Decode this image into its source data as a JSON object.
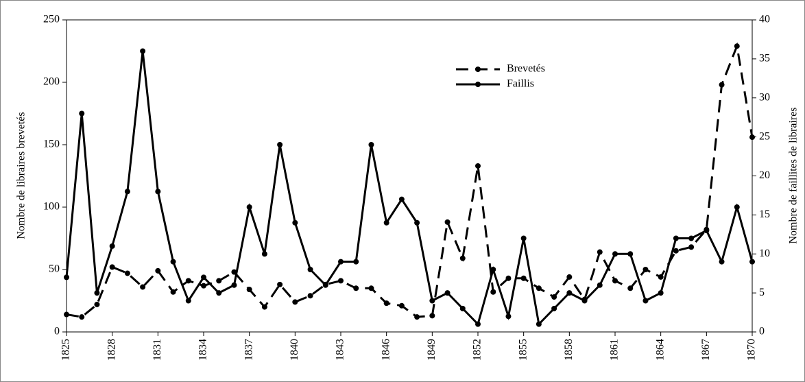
{
  "chart_data": {
    "type": "line",
    "ylabel": "Nombre de libraires brevetés",
    "y2label": "Nombre de faillites de libraires",
    "x": [
      1825,
      1826,
      1827,
      1828,
      1829,
      1830,
      1831,
      1832,
      1833,
      1834,
      1835,
      1836,
      1837,
      1838,
      1839,
      1840,
      1841,
      1842,
      1843,
      1844,
      1845,
      1846,
      1847,
      1848,
      1849,
      1850,
      1851,
      1852,
      1853,
      1854,
      1855,
      1856,
      1857,
      1858,
      1859,
      1860,
      1861,
      1862,
      1863,
      1864,
      1865,
      1866,
      1867,
      1868,
      1869,
      1870
    ],
    "xlim": [
      1825,
      1870
    ],
    "xticks": [
      1825,
      1828,
      1831,
      1834,
      1837,
      1840,
      1843,
      1846,
      1849,
      1852,
      1855,
      1858,
      1861,
      1864,
      1867,
      1870
    ],
    "ylim": [
      0,
      250
    ],
    "yticks": [
      0,
      50,
      100,
      150,
      200,
      250
    ],
    "y2lim": [
      0,
      40
    ],
    "y2ticks": [
      0,
      5,
      10,
      15,
      20,
      25,
      30,
      35,
      40
    ],
    "legend": "upper center",
    "series": [
      {
        "name": "Brevetés",
        "color": "#000000",
        "line_style": "dashed",
        "values": [
          14,
          12,
          22,
          52,
          47,
          36,
          49,
          32,
          41,
          37,
          41,
          48,
          34,
          20,
          38,
          24,
          29,
          38,
          41,
          35,
          35,
          23,
          21,
          12,
          13,
          88,
          59,
          133,
          32,
          43,
          43,
          35,
          28,
          44,
          26,
          64,
          41,
          35,
          50,
          44,
          65,
          68,
          82,
          198,
          229,
          156
        ]
      },
      {
        "name": "Faillis",
        "color": "#000000",
        "line_style": "solid",
        "axis": "y2",
        "values": [
          7,
          28,
          5,
          11,
          18,
          36,
          18,
          9,
          4,
          7,
          5,
          6,
          16,
          10,
          24,
          14,
          8,
          6,
          9,
          9,
          24,
          14,
          17,
          14,
          4,
          5,
          3,
          1,
          8,
          2,
          12,
          1,
          3,
          5,
          4,
          6,
          10,
          10,
          4,
          5,
          12,
          12,
          13,
          9,
          16,
          9
        ]
      }
    ]
  }
}
